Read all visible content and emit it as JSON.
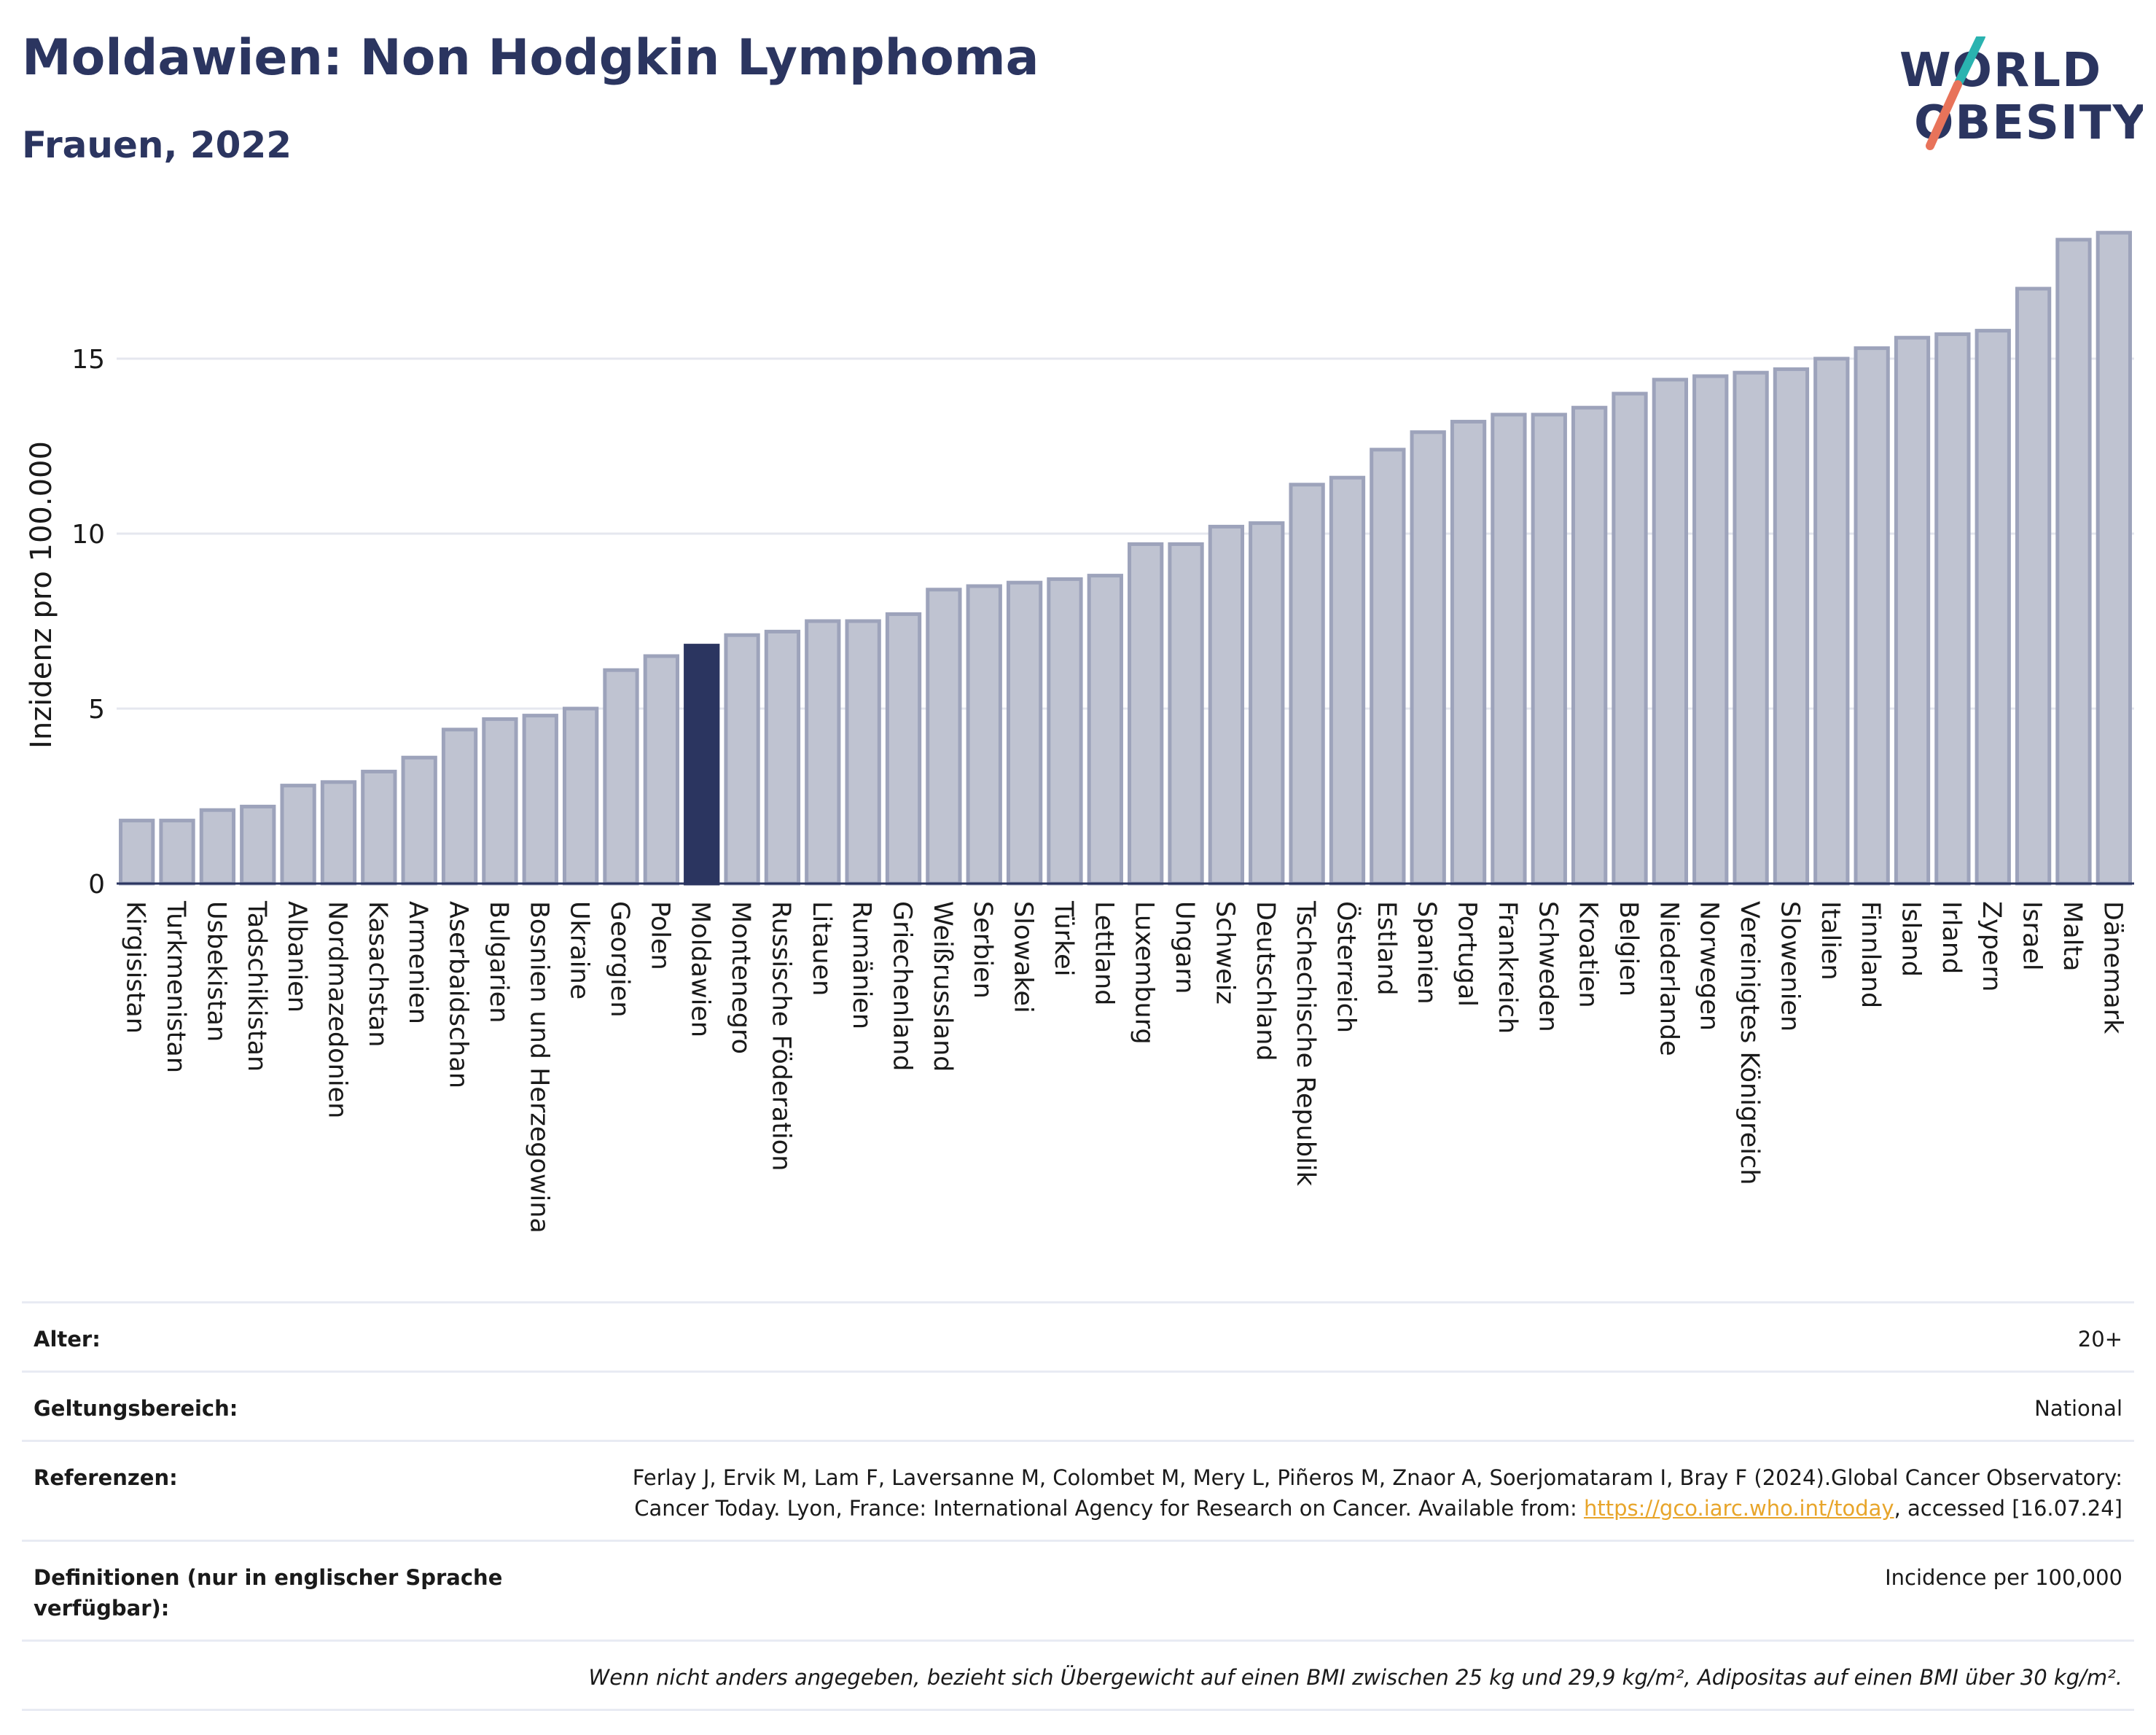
{
  "header": {
    "title": "Moldawien: Non Hodgkin Lymphoma",
    "subtitle": "Frauen, 2022",
    "logo_line1": "WORLD",
    "logo_line2": "OBESITY"
  },
  "colors": {
    "bar": "#bfc3d1",
    "bar_stroke": "#9da3bb",
    "highlight": "#2b3560",
    "text": "#1a1a1a",
    "grid": "#e5e7ef",
    "logo_navy": "#2b3560",
    "logo_teal": "#2ab3b0",
    "logo_coral": "#e8735a",
    "link": "#e8a52a"
  },
  "chart_data": {
    "type": "bar",
    "ylabel": "Inzidenz pro 100.000",
    "xlabel": "",
    "ylim": [
      0,
      19
    ],
    "yticks": [
      0,
      5,
      10,
      15
    ],
    "grid": true,
    "highlight": "Moldawien",
    "categories": [
      "Kirgisistan",
      "Turkmenistan",
      "Usbekistan",
      "Tadschikistan",
      "Albanien",
      "Nordmazedonien",
      "Kasachstan",
      "Armenien",
      "Aserbaidschan",
      "Bulgarien",
      "Bosnien und Herzegowina",
      "Ukraine",
      "Georgien",
      "Polen",
      "Moldawien",
      "Montenegro",
      "Russische Föderation",
      "Litauen",
      "Rumänien",
      "Griechenland",
      "Weißrussland",
      "Serbien",
      "Slowakei",
      "Türkei",
      "Lettland",
      "Luxemburg",
      "Ungarn",
      "Schweiz",
      "Deutschland",
      "Tschechische Republik",
      "Österreich",
      "Estland",
      "Spanien",
      "Portugal",
      "Frankreich",
      "Schweden",
      "Kroatien",
      "Belgien",
      "Niederlande",
      "Norwegen",
      "Vereinigtes Königreich",
      "Slowenien",
      "Italien",
      "Finnland",
      "Island",
      "Irland",
      "Zypern",
      "Israel",
      "Malta",
      "Dänemark"
    ],
    "values": [
      1.8,
      1.8,
      2.1,
      2.2,
      2.8,
      2.9,
      3.2,
      3.6,
      4.4,
      4.7,
      4.8,
      5.0,
      6.1,
      6.5,
      6.8,
      7.1,
      7.2,
      7.5,
      7.5,
      7.7,
      8.4,
      8.5,
      8.6,
      8.7,
      8.8,
      9.7,
      9.7,
      10.2,
      10.3,
      11.4,
      11.6,
      12.4,
      12.9,
      13.2,
      13.4,
      13.4,
      13.6,
      14.0,
      14.4,
      14.5,
      14.6,
      14.7,
      15.0,
      15.3,
      15.6,
      15.7,
      15.8,
      17.0,
      18.4,
      18.6
    ]
  },
  "meta": {
    "rows": [
      {
        "label": "Alter:",
        "value": "20+"
      },
      {
        "label": "Geltungsbereich:",
        "value": "National"
      },
      {
        "label": "Referenzen:",
        "value_pre": "Ferlay J, Ervik M, Lam F, Laversanne M, Colombet M, Mery L, Piñeros M, Znaor A, Soerjomataram I, Bray F (2024).Global Cancer Observatory: Cancer Today. Lyon, France: International Agency for Research on Cancer. Available from: ",
        "link": "https://gco.iarc.who.int/today",
        "value_post": ", accessed [16.07.24]"
      },
      {
        "label": "Definitionen (nur in englischer Sprache verfügbar):",
        "value": "Incidence per 100,000"
      }
    ],
    "note": "Wenn nicht anders angegeben, bezieht sich Übergewicht auf einen BMI zwischen 25 kg und 29,9 kg/m², Adipositas auf einen BMI über 30 kg/m²."
  }
}
